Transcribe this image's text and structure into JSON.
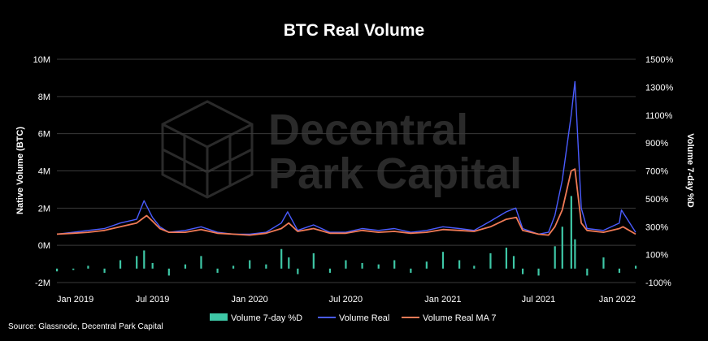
{
  "title": "BTC Real Volume",
  "source": "Source: Glassnode, Decentral Park Capital",
  "watermark": {
    "line1": "Decentral",
    "line2": "Park Capital"
  },
  "colors": {
    "pct": "#3ec7a6",
    "volume": "#4a5cff",
    "ma": "#f07a56",
    "grid": "#3a3a3a"
  },
  "chart_data": {
    "type": "line",
    "title": "BTC Real Volume",
    "left_axis": {
      "label": "Native Volume (BTC)",
      "range": [
        -2000000,
        10000000
      ],
      "ticks": [
        {
          "v": -2000000,
          "label": "-2M"
        },
        {
          "v": 0,
          "label": "0M"
        },
        {
          "v": 2000000,
          "label": "2M"
        },
        {
          "v": 4000000,
          "label": "4M"
        },
        {
          "v": 6000000,
          "label": "6M"
        },
        {
          "v": 8000000,
          "label": "8M"
        },
        {
          "v": 10000000,
          "label": "10M"
        }
      ]
    },
    "right_axis": {
      "label": "Volume 7-day %D",
      "range": [
        -100,
        1500
      ],
      "ticks": [
        {
          "v": -100,
          "label": "-100%"
        },
        {
          "v": 100,
          "label": "100%"
        },
        {
          "v": 300,
          "label": "300%"
        },
        {
          "v": 500,
          "label": "500%"
        },
        {
          "v": 700,
          "label": "700%"
        },
        {
          "v": 900,
          "label": "900%"
        },
        {
          "v": 1100,
          "label": "1100%"
        },
        {
          "v": 1300,
          "label": "1300%"
        },
        {
          "v": 1500,
          "label": "1500%"
        }
      ]
    },
    "x_axis": {
      "range": [
        "2019-01-01",
        "2022-01-01"
      ],
      "ticks": [
        {
          "v": "2019-01-01",
          "label": "Jan 2019"
        },
        {
          "v": "2019-07-01",
          "label": "Jul 2019"
        },
        {
          "v": "2020-01-01",
          "label": "Jan 2020"
        },
        {
          "v": "2020-07-01",
          "label": "Jul 2020"
        },
        {
          "v": "2021-01-01",
          "label": "Jan 2021"
        },
        {
          "v": "2021-07-01",
          "label": "Jul 2021"
        },
        {
          "v": "2022-01-01",
          "label": "Jan 2022"
        }
      ]
    },
    "grid": true,
    "legend_position": "bottom",
    "series": [
      {
        "name": "Volume 7-day %D",
        "type": "bar",
        "axis": "right",
        "x": [
          "2019-01-01",
          "2019-02-01",
          "2019-03-01",
          "2019-04-01",
          "2019-05-01",
          "2019-06-01",
          "2019-06-15",
          "2019-07-01",
          "2019-08-01",
          "2019-09-01",
          "2019-10-01",
          "2019-11-01",
          "2019-12-01",
          "2020-01-01",
          "2020-02-01",
          "2020-03-01",
          "2020-03-15",
          "2020-04-01",
          "2020-05-01",
          "2020-06-01",
          "2020-07-01",
          "2020-08-01",
          "2020-09-01",
          "2020-10-01",
          "2020-11-01",
          "2020-12-01",
          "2021-01-01",
          "2021-02-01",
          "2021-03-01",
          "2021-04-01",
          "2021-05-01",
          "2021-05-15",
          "2021-06-01",
          "2021-07-01",
          "2021-08-01",
          "2021-08-15",
          "2021-09-01",
          "2021-09-08",
          "2021-10-01",
          "2021-11-01",
          "2021-12-01",
          "2022-01-01"
        ],
        "values": [
          -20,
          -10,
          20,
          -30,
          60,
          90,
          130,
          40,
          -50,
          30,
          90,
          -30,
          20,
          60,
          30,
          140,
          80,
          -40,
          110,
          -30,
          60,
          40,
          30,
          60,
          -30,
          50,
          120,
          60,
          20,
          110,
          150,
          90,
          -40,
          -50,
          160,
          300,
          520,
          210,
          -50,
          80,
          -30,
          20
        ]
      },
      {
        "name": "Volume Real",
        "type": "line",
        "axis": "left",
        "x": [
          "2019-01-01",
          "2019-02-01",
          "2019-03-01",
          "2019-04-01",
          "2019-05-01",
          "2019-06-01",
          "2019-06-15",
          "2019-07-01",
          "2019-07-15",
          "2019-08-01",
          "2019-09-01",
          "2019-10-01",
          "2019-11-01",
          "2019-12-01",
          "2020-01-01",
          "2020-02-01",
          "2020-03-01",
          "2020-03-13",
          "2020-04-01",
          "2020-05-01",
          "2020-06-01",
          "2020-07-01",
          "2020-08-01",
          "2020-09-01",
          "2020-10-01",
          "2020-11-01",
          "2020-12-01",
          "2021-01-01",
          "2021-02-01",
          "2021-03-01",
          "2021-04-01",
          "2021-05-01",
          "2021-05-19",
          "2021-06-01",
          "2021-07-01",
          "2021-07-20",
          "2021-08-01",
          "2021-08-15",
          "2021-09-01",
          "2021-09-08",
          "2021-09-20",
          "2021-10-01",
          "2021-11-01",
          "2021-12-01",
          "2021-12-05",
          "2022-01-01"
        ],
        "values": [
          600000,
          700000,
          800000,
          900000,
          1200000,
          1400000,
          2400000,
          1500000,
          1000000,
          700000,
          800000,
          1000000,
          700000,
          600000,
          600000,
          700000,
          1200000,
          1800000,
          800000,
          1100000,
          700000,
          700000,
          900000,
          800000,
          900000,
          700000,
          800000,
          1000000,
          900000,
          800000,
          1300000,
          1800000,
          2000000,
          900000,
          600000,
          700000,
          1600000,
          3500000,
          7000000,
          8800000,
          2000000,
          900000,
          800000,
          1200000,
          1900000,
          700000
        ]
      },
      {
        "name": "Volume Real MA 7",
        "type": "line",
        "axis": "left",
        "x": [
          "2019-01-01",
          "2019-02-01",
          "2019-03-01",
          "2019-04-01",
          "2019-05-01",
          "2019-06-01",
          "2019-06-20",
          "2019-07-01",
          "2019-07-15",
          "2019-08-01",
          "2019-09-01",
          "2019-10-01",
          "2019-11-01",
          "2019-12-01",
          "2020-01-01",
          "2020-02-01",
          "2020-03-01",
          "2020-03-15",
          "2020-04-01",
          "2020-05-01",
          "2020-06-01",
          "2020-07-01",
          "2020-08-01",
          "2020-09-01",
          "2020-10-01",
          "2020-11-01",
          "2020-12-01",
          "2021-01-01",
          "2021-02-01",
          "2021-03-01",
          "2021-04-01",
          "2021-05-01",
          "2021-05-20",
          "2021-06-01",
          "2021-07-01",
          "2021-07-20",
          "2021-08-01",
          "2021-08-15",
          "2021-09-01",
          "2021-09-08",
          "2021-09-20",
          "2021-10-01",
          "2021-11-01",
          "2021-12-01",
          "2021-12-08",
          "2022-01-01"
        ],
        "values": [
          600000,
          650000,
          700000,
          800000,
          1000000,
          1200000,
          1600000,
          1300000,
          900000,
          700000,
          700000,
          850000,
          650000,
          600000,
          550000,
          650000,
          900000,
          1200000,
          750000,
          900000,
          650000,
          650000,
          800000,
          700000,
          750000,
          650000,
          700000,
          850000,
          800000,
          750000,
          1000000,
          1400000,
          1500000,
          800000,
          600000,
          550000,
          1000000,
          1900000,
          4000000,
          4100000,
          1200000,
          800000,
          700000,
          900000,
          1000000,
          600000
        ]
      }
    ]
  }
}
